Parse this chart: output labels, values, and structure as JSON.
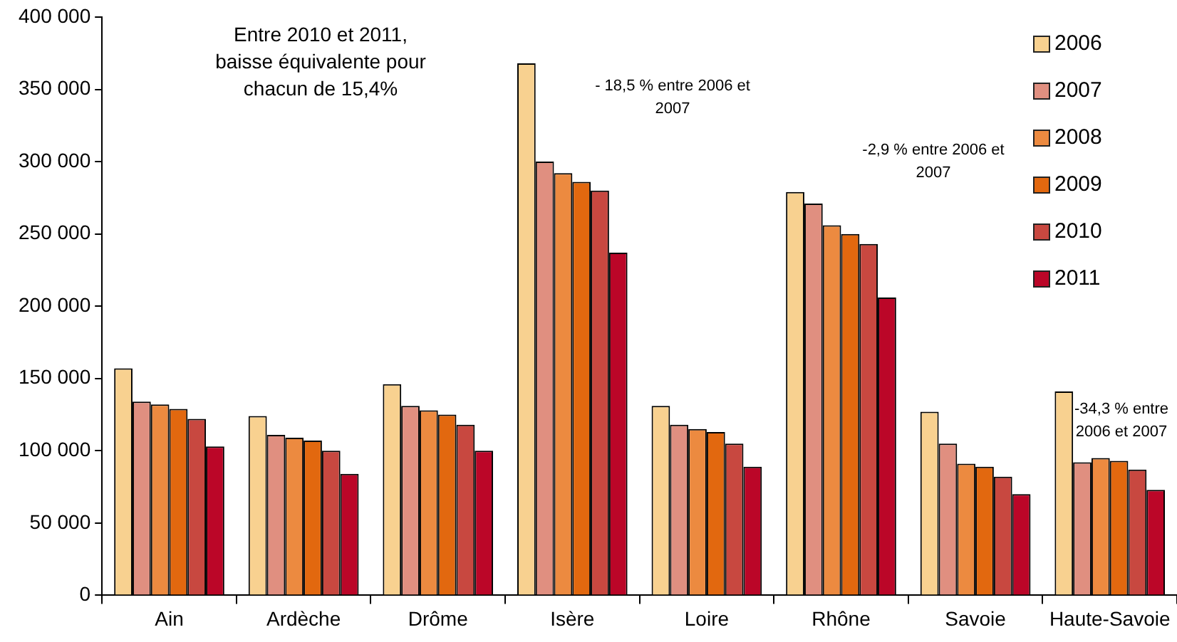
{
  "chart_data": {
    "type": "bar",
    "categories": [
      "Ain",
      "Ardèche",
      "Drôme",
      "Isère",
      "Loire",
      "Rhône",
      "Savoie",
      "Haute-Savoie"
    ],
    "series": [
      {
        "name": "2006",
        "color": "#f8d190",
        "values": [
          157000,
          124000,
          146000,
          368000,
          131000,
          279000,
          127000,
          141000
        ]
      },
      {
        "name": "2007",
        "color": "#e08f80",
        "values": [
          134000,
          111000,
          131000,
          300000,
          118000,
          271000,
          105000,
          92000
        ]
      },
      {
        "name": "2008",
        "color": "#ec8a40",
        "values": [
          132000,
          109000,
          128000,
          292000,
          115000,
          256000,
          91000,
          95000
        ]
      },
      {
        "name": "2009",
        "color": "#e2680f",
        "values": [
          129000,
          107000,
          125000,
          286000,
          113000,
          250000,
          89000,
          93000
        ]
      },
      {
        "name": "2010",
        "color": "#c84840",
        "values": [
          122000,
          100000,
          118000,
          280000,
          105000,
          243000,
          82000,
          87000
        ]
      },
      {
        "name": "2011",
        "color": "#bb0628",
        "values": [
          103000,
          84000,
          100000,
          237000,
          89000,
          206000,
          70000,
          73000
        ]
      }
    ],
    "ylim": [
      0,
      400000
    ],
    "yticks": [
      {
        "value": 0,
        "label": "0"
      },
      {
        "value": 50000,
        "label": "50 000"
      },
      {
        "value": 100000,
        "label": "100 000"
      },
      {
        "value": 150000,
        "label": "150 000"
      },
      {
        "value": 200000,
        "label": "200 000"
      },
      {
        "value": 250000,
        "label": "250 000"
      },
      {
        "value": 300000,
        "label": "300 000"
      },
      {
        "value": 350000,
        "label": "350 000"
      },
      {
        "value": 400000,
        "label": "400 000"
      }
    ],
    "grid": false,
    "legend": "top right",
    "annotations": [
      "Entre 2010 et 2011, baisse équivalente pour chacun de 15,4%",
      "- 18,5 % entre 2006 et 2007",
      "-2,9 % entre 2006 et 2007",
      "-34,3 % entre 2006 et 2007"
    ]
  }
}
